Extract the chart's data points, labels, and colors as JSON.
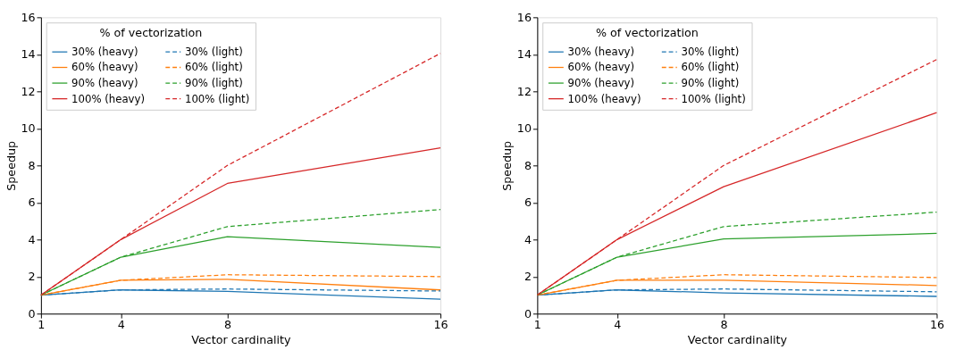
{
  "chart_data": [
    {
      "type": "line",
      "xlabel": "Vector cardinality",
      "ylabel": "Speedup",
      "legend_title": "% of vectorization",
      "legend": "top left",
      "grid": false,
      "x": [
        1,
        4,
        8,
        16
      ],
      "xlim": [
        1,
        16
      ],
      "xticks": [
        1,
        4,
        8,
        16
      ],
      "ylim": [
        0,
        16
      ],
      "yticks": [
        0,
        2,
        4,
        6,
        8,
        10,
        12,
        14,
        16
      ],
      "series": [
        {
          "name": "30% (heavy)",
          "color": "#1f77b4",
          "line_style": "solid",
          "values": [
            1,
            1.28,
            1.2,
            0.78
          ]
        },
        {
          "name": "60% (heavy)",
          "color": "#ff7f0e",
          "line_style": "solid",
          "values": [
            1,
            1.8,
            1.85,
            1.28
          ]
        },
        {
          "name": "90% (heavy)",
          "color": "#2ca02c",
          "line_style": "solid",
          "values": [
            1,
            3.05,
            4.15,
            3.58
          ]
        },
        {
          "name": "100% (heavy)",
          "color": "#d62728",
          "line_style": "solid",
          "values": [
            1,
            4,
            7.03,
            8.95
          ]
        },
        {
          "name": "30% (light)",
          "color": "#1f77b4",
          "line_style": "dashed",
          "values": [
            1,
            1.28,
            1.33,
            1.22
          ]
        },
        {
          "name": "60% (light)",
          "color": "#ff7f0e",
          "line_style": "dashed",
          "values": [
            1,
            1.8,
            2.1,
            2.0
          ]
        },
        {
          "name": "90% (light)",
          "color": "#2ca02c",
          "line_style": "dashed",
          "values": [
            1,
            3.05,
            4.7,
            5.62
          ]
        },
        {
          "name": "100% (light)",
          "color": "#d62728",
          "line_style": "dashed",
          "values": [
            1,
            4,
            8,
            14.05
          ]
        }
      ]
    },
    {
      "type": "line",
      "xlabel": "Vector cardinality",
      "ylabel": "Speedup",
      "legend_title": "% of vectorization",
      "legend": "top left",
      "grid": false,
      "x": [
        1,
        4,
        8,
        16
      ],
      "xlim": [
        1,
        16
      ],
      "xticks": [
        1,
        4,
        8,
        16
      ],
      "ylim": [
        0,
        16
      ],
      "yticks": [
        0,
        2,
        4,
        6,
        8,
        10,
        12,
        14,
        16
      ],
      "series": [
        {
          "name": "30% (heavy)",
          "color": "#1f77b4",
          "line_style": "solid",
          "values": [
            1,
            1.28,
            1.12,
            0.93
          ]
        },
        {
          "name": "60% (heavy)",
          "color": "#ff7f0e",
          "line_style": "solid",
          "values": [
            1,
            1.8,
            1.8,
            1.52
          ]
        },
        {
          "name": "90% (heavy)",
          "color": "#2ca02c",
          "line_style": "solid",
          "values": [
            1,
            3.05,
            4.03,
            4.33
          ]
        },
        {
          "name": "100% (heavy)",
          "color": "#d62728",
          "line_style": "solid",
          "values": [
            1,
            4,
            6.85,
            10.85
          ]
        },
        {
          "name": "30% (light)",
          "color": "#1f77b4",
          "line_style": "dashed",
          "values": [
            1,
            1.28,
            1.33,
            1.18
          ]
        },
        {
          "name": "60% (light)",
          "color": "#ff7f0e",
          "line_style": "dashed",
          "values": [
            1,
            1.8,
            2.1,
            1.95
          ]
        },
        {
          "name": "90% (light)",
          "color": "#2ca02c",
          "line_style": "dashed",
          "values": [
            1,
            3.05,
            4.7,
            5.48
          ]
        },
        {
          "name": "100% (light)",
          "color": "#d62728",
          "line_style": "dashed",
          "values": [
            1,
            4,
            8,
            13.72
          ]
        }
      ]
    }
  ]
}
